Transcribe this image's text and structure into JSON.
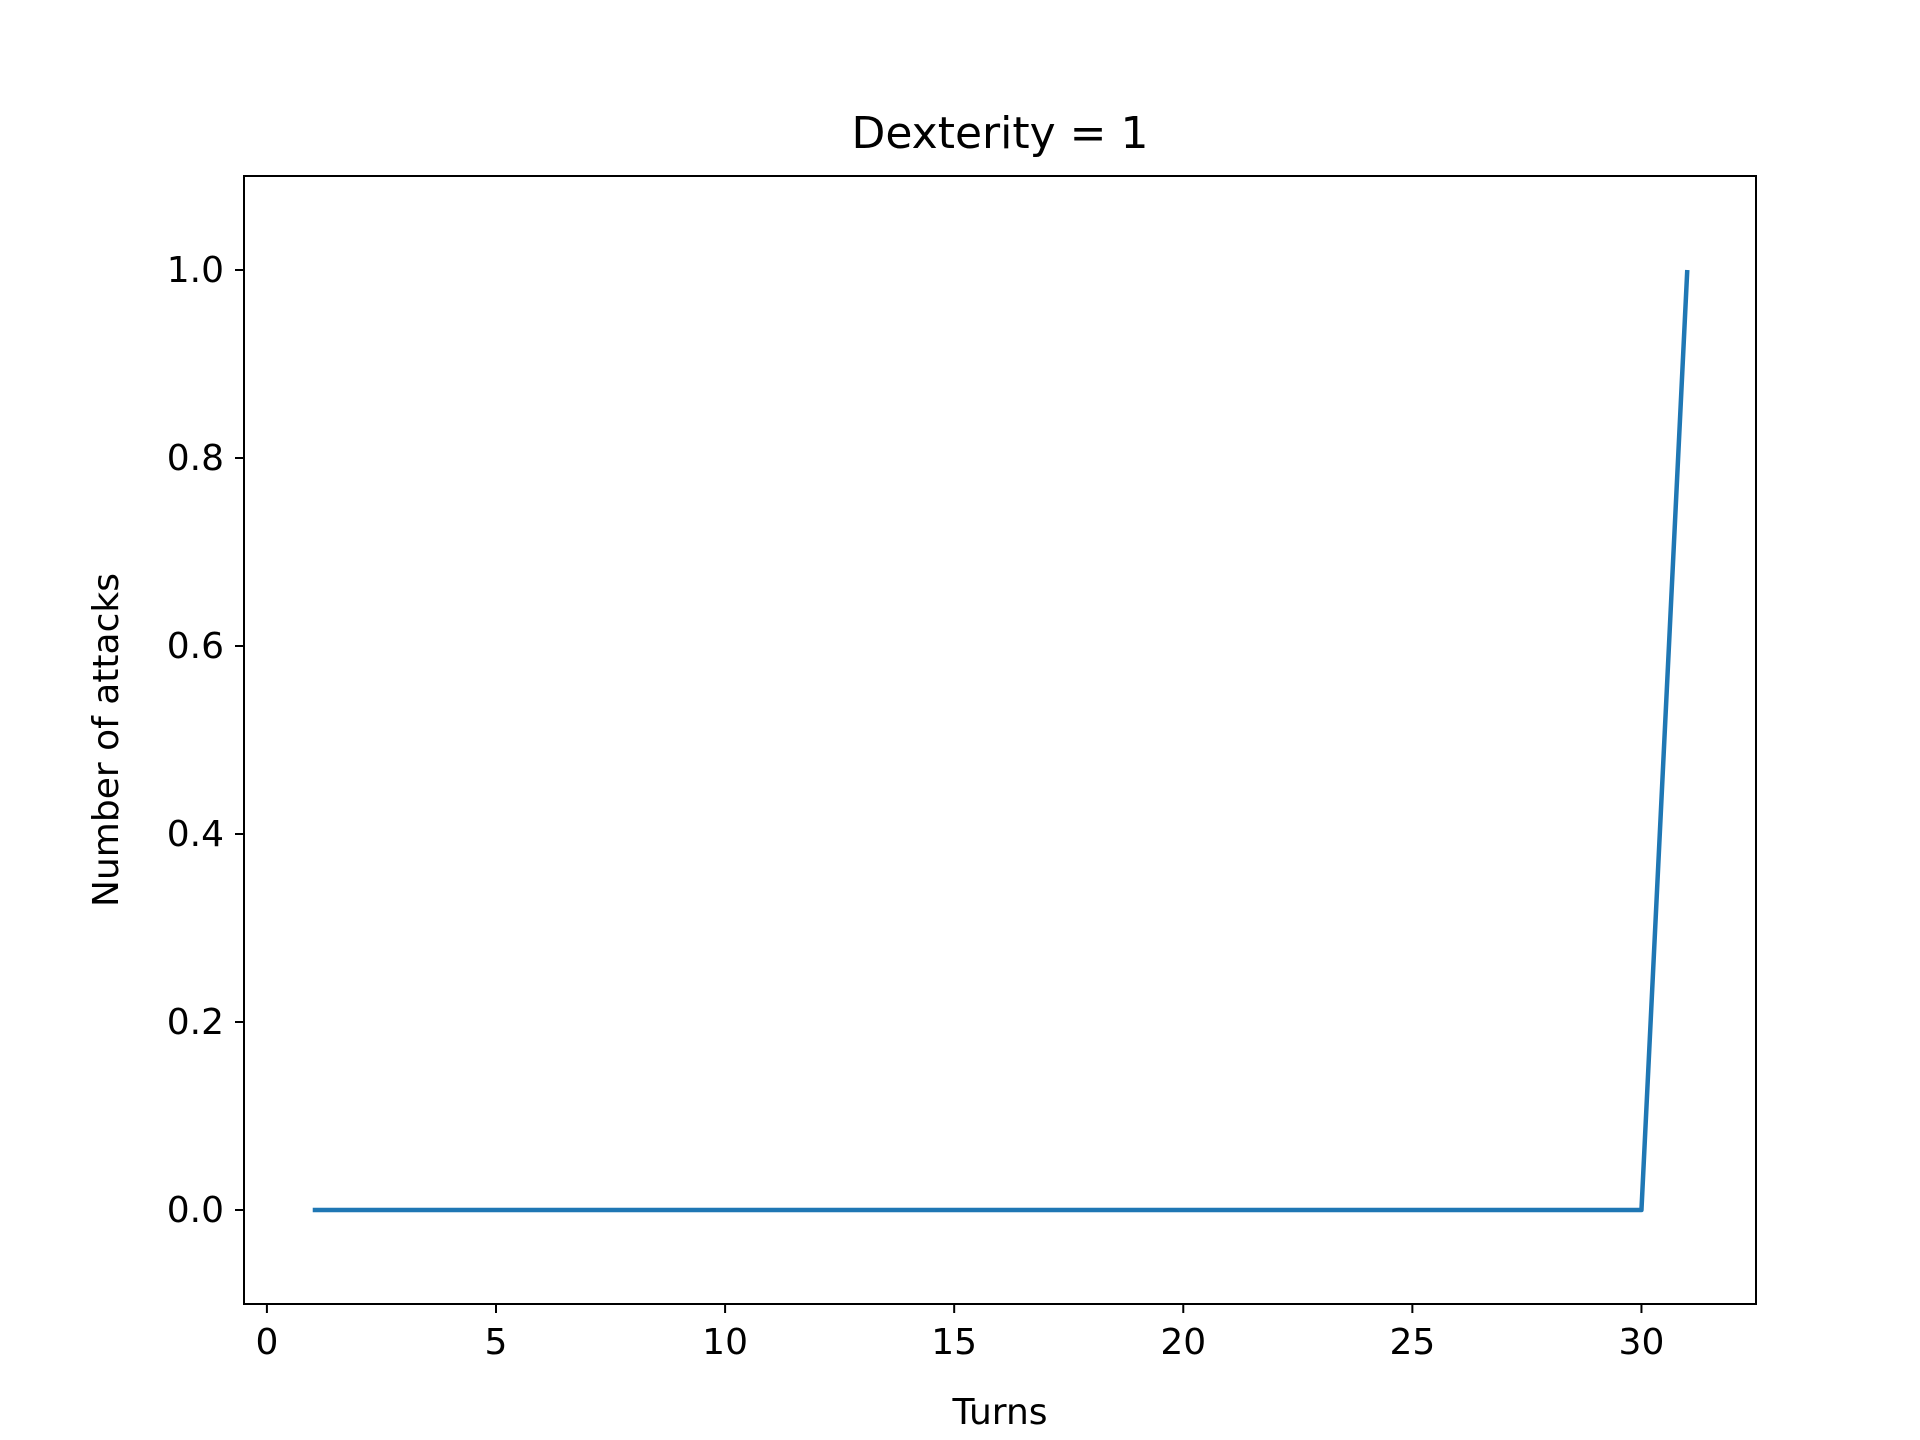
{
  "chart_data": {
    "type": "line",
    "title": "Dexterity = 1",
    "xlabel": "Turns",
    "ylabel": "Number of attacks",
    "xlim": [
      -0.5,
      32.5
    ],
    "ylim": [
      -0.1,
      1.1
    ],
    "xticks": [
      0,
      5,
      10,
      15,
      20,
      25,
      30
    ],
    "yticks": [
      0.0,
      0.2,
      0.4,
      0.6,
      0.8,
      1.0
    ],
    "xtick_labels": [
      "0",
      "5",
      "10",
      "15",
      "20",
      "25",
      "30"
    ],
    "ytick_labels": [
      "0.0",
      "0.2",
      "0.4",
      "0.6",
      "0.8",
      "1.0"
    ],
    "grid": false,
    "series": [
      {
        "color": "#1f77b4",
        "x": [
          1,
          2,
          3,
          4,
          5,
          6,
          7,
          8,
          9,
          10,
          11,
          12,
          13,
          14,
          15,
          16,
          17,
          18,
          19,
          20,
          21,
          22,
          23,
          24,
          25,
          26,
          27,
          28,
          29,
          30,
          31
        ],
        "y": [
          0,
          0,
          0,
          0,
          0,
          0,
          0,
          0,
          0,
          0,
          0,
          0,
          0,
          0,
          0,
          0,
          0,
          0,
          0,
          0,
          0,
          0,
          0,
          0,
          0,
          0,
          0,
          0,
          0,
          0,
          1
        ]
      }
    ]
  }
}
